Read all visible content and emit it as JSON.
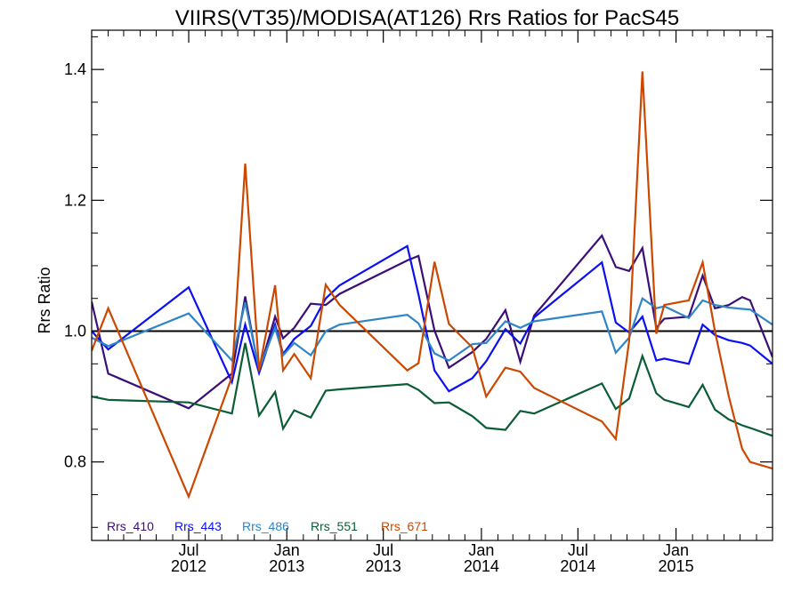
{
  "chart_data": {
    "type": "line",
    "title": "VIIRS(VT35)/MODISA(AT126)  Rrs Ratios for PacS45",
    "ylabel": "Rrs Ratio",
    "xlabel": "",
    "xlim": [
      "2012-01-01",
      "2015-07-01"
    ],
    "ylim": [
      0.68,
      1.46
    ],
    "yticks": [
      0.8,
      1.0,
      1.2,
      1.4
    ],
    "ytick_labels": [
      "0.8",
      "1.0",
      "1.2",
      "1.4"
    ],
    "xticks": [
      {
        "date": "2012-07-01",
        "month": "Jul",
        "year": "2012"
      },
      {
        "date": "2013-01-01",
        "month": "Jan",
        "year": "2013"
      },
      {
        "date": "2013-07-01",
        "month": "Jul",
        "year": "2013"
      },
      {
        "date": "2014-01-01",
        "month": "Jan",
        "year": "2014"
      },
      {
        "date": "2014-07-01",
        "month": "Jul",
        "year": "2014"
      },
      {
        "date": "2015-01-01",
        "month": "Jan",
        "year": "2015"
      }
    ],
    "reference_line": 1.0,
    "legend_position": "bottom-left",
    "dates": [
      "2012-01-01",
      "2012-02-01",
      "2012-07-01",
      "2012-09-20",
      "2012-10-15",
      "2012-11-10",
      "2012-12-10",
      "2012-12-25",
      "2013-01-15",
      "2013-02-15",
      "2013-03-15",
      "2013-04-10",
      "2013-08-15",
      "2013-09-05",
      "2013-10-05",
      "2013-11-01",
      "2013-12-15",
      "2014-01-10",
      "2014-02-15",
      "2014-03-15",
      "2014-04-10",
      "2014-08-15",
      "2014-09-10",
      "2014-10-05",
      "2014-10-30",
      "2014-11-25",
      "2014-12-10",
      "2015-01-25",
      "2015-02-20",
      "2015-03-15",
      "2015-04-10",
      "2015-05-05",
      "2015-05-20",
      "2015-07-01"
    ],
    "series": [
      {
        "name": "Rrs_410",
        "color": "#3b0f78",
        "values": [
          1.045,
          0.935,
          0.882,
          0.935,
          1.053,
          0.938,
          1.022,
          0.989,
          1.005,
          1.042,
          1.04,
          1.057,
          1.108,
          1.115,
          1.001,
          0.944,
          0.968,
          0.988,
          1.032,
          0.953,
          1.024,
          1.146,
          1.098,
          1.092,
          1.127,
          1.005,
          1.019,
          1.022,
          1.085,
          1.035,
          1.04,
          1.052,
          1.047,
          0.96
        ]
      },
      {
        "name": "Rrs_443",
        "color": "#0a10f2",
        "values": [
          1.0,
          0.972,
          1.067,
          0.922,
          1.01,
          0.936,
          1.01,
          0.965,
          0.988,
          1.008,
          1.05,
          1.07,
          1.13,
          1.056,
          0.94,
          0.908,
          0.928,
          0.954,
          1.003,
          0.981,
          1.021,
          1.105,
          1.013,
          0.998,
          1.022,
          0.955,
          0.958,
          0.95,
          1.01,
          0.994,
          0.986,
          0.982,
          0.978,
          0.95
        ]
      },
      {
        "name": "Rrs_486",
        "color": "#2f85c6",
        "values": [
          0.99,
          0.977,
          1.027,
          0.955,
          1.044,
          0.942,
          1.005,
          0.963,
          0.982,
          0.963,
          1.0,
          1.01,
          1.025,
          1.012,
          0.966,
          0.955,
          0.98,
          0.982,
          1.015,
          1.005,
          1.015,
          1.03,
          0.967,
          0.99,
          1.05,
          1.035,
          1.038,
          1.02,
          1.047,
          1.04,
          1.036,
          1.034,
          1.033,
          1.01
        ]
      },
      {
        "name": "Rrs_551",
        "color": "#0b5d36",
        "values": [
          0.9,
          0.895,
          0.891,
          0.874,
          0.982,
          0.871,
          0.907,
          0.851,
          0.879,
          0.868,
          0.909,
          0.911,
          0.919,
          0.91,
          0.89,
          0.891,
          0.87,
          0.852,
          0.849,
          0.878,
          0.874,
          0.92,
          0.881,
          0.897,
          0.962,
          0.905,
          0.895,
          0.884,
          0.918,
          0.88,
          0.865,
          0.856,
          0.852,
          0.84
        ]
      },
      {
        "name": "Rrs_671",
        "color": "#cc4800",
        "values": [
          0.97,
          1.035,
          0.747,
          0.93,
          1.256,
          0.94,
          1.07,
          0.94,
          0.965,
          0.928,
          1.071,
          1.04,
          0.94,
          0.951,
          1.106,
          1.011,
          0.975,
          0.9,
          0.944,
          0.938,
          0.913,
          0.862,
          0.835,
          0.985,
          1.397,
          0.996,
          1.04,
          1.047,
          1.105,
          1.0,
          0.9,
          0.82,
          0.8,
          0.79
        ]
      }
    ]
  }
}
